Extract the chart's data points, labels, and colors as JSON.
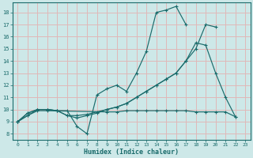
{
  "bg_color": "#cde8e8",
  "grid_color": "#e0b8b8",
  "line_color": "#1a6b6b",
  "xlabel": "Humidex (Indice chaleur)",
  "xlim": [
    -0.5,
    23.5
  ],
  "ylim": [
    7.5,
    18.8
  ],
  "yticks": [
    8,
    9,
    10,
    11,
    12,
    13,
    14,
    15,
    16,
    17,
    18
  ],
  "xticks": [
    0,
    1,
    2,
    3,
    4,
    5,
    6,
    7,
    8,
    9,
    10,
    11,
    12,
    13,
    14,
    15,
    16,
    17,
    18,
    19,
    20,
    21,
    22,
    23
  ],
  "line1": {
    "x": [
      0,
      1,
      2,
      3,
      4,
      5,
      6,
      7,
      8,
      9,
      10,
      11,
      12,
      13,
      14,
      15,
      16,
      17
    ],
    "y": [
      9,
      9.7,
      10,
      10.0,
      9.9,
      9.9,
      8.6,
      8.0,
      11.2,
      11.7,
      12.0,
      11.5,
      13.0,
      14.8,
      18.0,
      18.2,
      18.5,
      17.0
    ]
  },
  "line2": {
    "x": [
      0,
      1,
      2,
      3,
      4,
      5,
      6,
      7,
      8,
      9,
      10,
      11,
      12,
      13,
      14,
      15,
      16,
      17,
      18,
      19,
      20,
      21,
      22
    ],
    "y": [
      9,
      9.7,
      10,
      10.0,
      9.9,
      9.5,
      9.5,
      9.6,
      9.8,
      10.0,
      10.2,
      10.5,
      11.0,
      11.5,
      12.0,
      12.5,
      13.0,
      14.0,
      15.5,
      15.3,
      13.0,
      11.0,
      9.4
    ]
  },
  "line3": {
    "x": [
      0,
      1,
      2,
      3,
      4,
      5,
      6,
      7,
      8,
      9,
      10,
      11,
      12,
      13,
      14,
      15,
      16,
      17,
      18,
      19,
      20
    ],
    "y": [
      9,
      9.5,
      10,
      10.0,
      9.9,
      9.5,
      9.3,
      9.5,
      9.7,
      10.0,
      10.2,
      10.5,
      11.0,
      11.5,
      12.0,
      12.5,
      13.0,
      14.0,
      15.0,
      17.0,
      16.8
    ]
  },
  "line4": {
    "x": [
      0,
      1,
      2,
      3,
      9,
      10,
      11,
      12,
      13,
      14,
      15,
      16,
      17,
      18,
      19,
      20,
      21,
      22
    ],
    "y": [
      9,
      9.5,
      9.9,
      9.9,
      9.8,
      9.8,
      9.9,
      9.9,
      9.9,
      9.9,
      9.9,
      9.9,
      9.9,
      9.8,
      9.8,
      9.8,
      9.8,
      9.4
    ]
  }
}
